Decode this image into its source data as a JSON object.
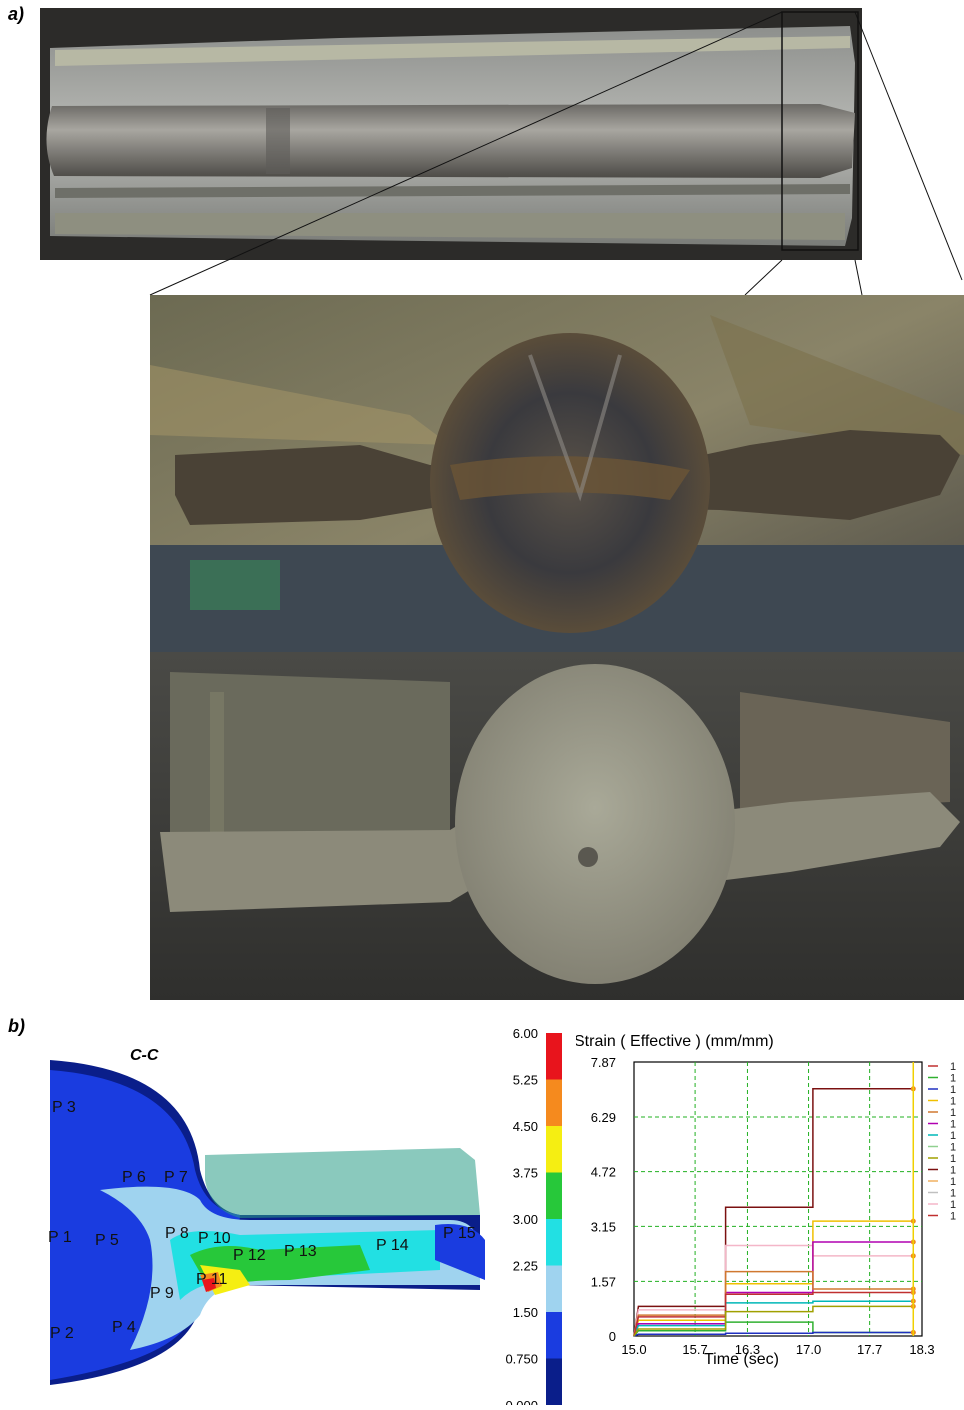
{
  "figure": {
    "panel_a_label": "a)",
    "panel_b_label": "b)",
    "section_label": "C-C",
    "points": [
      "P 3",
      "P 6",
      "P 7",
      "P 1",
      "P 5",
      "P 8",
      "P 10",
      "P 12",
      "P 13",
      "P 14",
      "P 15",
      "P 11",
      "P 9",
      "P 2",
      "P 4"
    ],
    "colorbar_ticks": [
      "6.00",
      "5.25",
      "4.50",
      "3.75",
      "3.00",
      "2.25",
      "1.50",
      "0.750",
      "0.000"
    ],
    "colorbar_colors": [
      "#e8141c",
      "#f58a1e",
      "#f5ee12",
      "#27c83a",
      "#22e0e3",
      "#9fd3ef",
      "#1a3ce0",
      "#0a1e8a"
    ]
  },
  "chart_data": {
    "type": "line",
    "title": "Strain ( Effective )  (mm/mm)",
    "xlabel": "Time (sec)",
    "ylabel": "",
    "xlim": [
      15.0,
      18.3
    ],
    "ylim": [
      0,
      7.87
    ],
    "x_ticks": [
      "15.0",
      "15.7",
      "16.3",
      "17.0",
      "17.7",
      "18.3"
    ],
    "y_ticks": [
      "0",
      "1.57",
      "3.15",
      "4.72",
      "6.29",
      "7.87"
    ],
    "grid": true,
    "series": [
      {
        "color": "#7b1010",
        "steps": [
          [
            15.0,
            0
          ],
          [
            15.05,
            0.85
          ],
          [
            16.05,
            0.85
          ],
          [
            16.05,
            3.7
          ],
          [
            17.05,
            3.7
          ],
          [
            17.05,
            7.1
          ],
          [
            18.2,
            7.1
          ]
        ]
      },
      {
        "color": "#f4b6c8",
        "steps": [
          [
            15.0,
            0
          ],
          [
            15.05,
            0.75
          ],
          [
            16.05,
            0.75
          ],
          [
            16.05,
            2.6
          ],
          [
            17.05,
            2.6
          ],
          [
            17.05,
            2.3
          ],
          [
            18.2,
            2.3
          ]
        ]
      },
      {
        "color": "#f0c000",
        "steps": [
          [
            15.0,
            0
          ],
          [
            15.05,
            0.45
          ],
          [
            16.05,
            0.45
          ],
          [
            16.05,
            1.5
          ],
          [
            17.05,
            1.5
          ],
          [
            17.05,
            3.3
          ],
          [
            18.2,
            3.3
          ]
        ]
      },
      {
        "color": "#b000b0",
        "steps": [
          [
            15.0,
            0
          ],
          [
            15.05,
            0.35
          ],
          [
            16.05,
            0.35
          ],
          [
            16.05,
            1.25
          ],
          [
            17.05,
            1.25
          ],
          [
            17.05,
            2.7
          ],
          [
            18.2,
            2.7
          ]
        ]
      },
      {
        "color": "#d07830",
        "steps": [
          [
            15.0,
            0
          ],
          [
            15.05,
            0.6
          ],
          [
            16.05,
            0.6
          ],
          [
            16.05,
            1.85
          ],
          [
            17.05,
            1.85
          ],
          [
            17.05,
            1.35
          ],
          [
            18.2,
            1.35
          ]
        ]
      },
      {
        "color": "#00b8b8",
        "steps": [
          [
            15.0,
            0
          ],
          [
            15.05,
            0.3
          ],
          [
            16.05,
            0.3
          ],
          [
            16.05,
            0.95
          ],
          [
            17.05,
            0.95
          ],
          [
            17.05,
            1.0
          ],
          [
            18.2,
            1.0
          ]
        ]
      },
      {
        "color": "#30b030",
        "steps": [
          [
            15.0,
            0
          ],
          [
            15.05,
            0.15
          ],
          [
            16.05,
            0.15
          ],
          [
            16.05,
            0.4
          ],
          [
            17.05,
            0.4
          ],
          [
            17.05,
            0.1
          ],
          [
            18.2,
            0.1
          ]
        ]
      },
      {
        "color": "#2030c0",
        "steps": [
          [
            15.0,
            0
          ],
          [
            15.05,
            0.05
          ],
          [
            16.05,
            0.05
          ],
          [
            16.05,
            0.08
          ],
          [
            17.05,
            0.08
          ],
          [
            17.05,
            0.1
          ],
          [
            18.2,
            0.1
          ]
        ]
      },
      {
        "color": "#c03030",
        "steps": [
          [
            15.0,
            0
          ],
          [
            15.05,
            0.55
          ],
          [
            16.05,
            0.55
          ],
          [
            16.05,
            1.2
          ],
          [
            17.05,
            1.2
          ],
          [
            17.05,
            1.25
          ],
          [
            18.2,
            1.25
          ]
        ]
      },
      {
        "color": "#a0a000",
        "steps": [
          [
            15.0,
            0
          ],
          [
            15.05,
            0.2
          ],
          [
            16.05,
            0.2
          ],
          [
            16.05,
            0.7
          ],
          [
            17.05,
            0.7
          ],
          [
            17.05,
            0.85
          ],
          [
            18.2,
            0.85
          ]
        ]
      }
    ],
    "legend_entries": [
      "1",
      "1",
      "1",
      "1",
      "1",
      "1",
      "1",
      "1",
      "1",
      "1",
      "1",
      "1",
      "1",
      "1"
    ],
    "legend_colors": [
      "#c03030",
      "#30b030",
      "#2030c0",
      "#f0c000",
      "#d07830",
      "#b000b0",
      "#00b8b8",
      "#90d090",
      "#a0a000",
      "#7b1010",
      "#f0b060",
      "#c0c0c0",
      "#f4b6c8",
      "#c03030"
    ]
  }
}
